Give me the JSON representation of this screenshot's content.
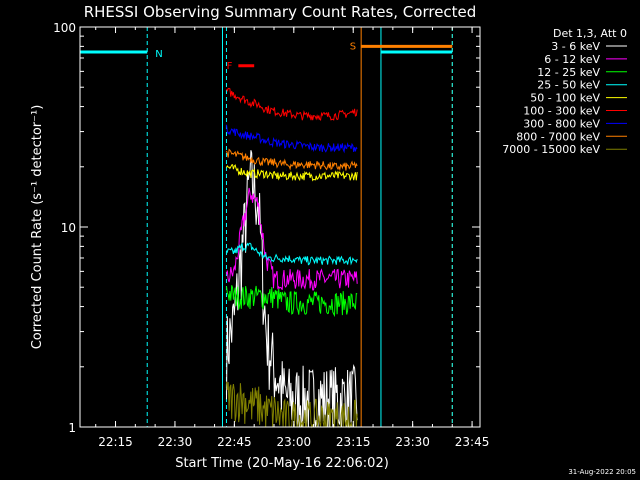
{
  "chart_data": {
    "type": "line",
    "title": "RHESSI Observing Summary Count Rates, Corrected",
    "xlabel": "Start Time (20-May-16 22:06:02)",
    "ylabel": "Corrected Count Rate (s⁻¹ detector⁻¹)",
    "x_ticks": [
      "22:15",
      "22:30",
      "22:45",
      "23:00",
      "23:15",
      "23:30",
      "23:45"
    ],
    "y_ticks": [
      "1",
      "10",
      "100"
    ],
    "y_scale": "log",
    "ylim": [
      1,
      100
    ],
    "xlim": [
      "22:06:02",
      "23:47:00"
    ],
    "legend_header": "Det 1,3, Att 0",
    "legend_placement": "right",
    "timestamp": "31-Aug-2022 20:05",
    "flags": [
      {
        "label": "N",
        "color": "#00ffff",
        "start": "22:06:02",
        "end": "22:23:00",
        "value": 75
      },
      {
        "label": "F",
        "color": "#ff0000",
        "start": "22:46:00",
        "end": "22:50:00",
        "value": 64
      },
      {
        "label": "S",
        "color": "#ff8000",
        "start": "23:17:00",
        "end": "23:40:00",
        "value": 80
      },
      {
        "label": "",
        "color": "#00ffff",
        "start": "23:22:00",
        "end": "23:40:00",
        "value": 75
      }
    ],
    "vertical_lines": [
      {
        "time": "22:06:02",
        "color": "#00ffff",
        "style": "solid"
      },
      {
        "time": "22:23:00",
        "color": "#00ffff",
        "style": "dashed"
      },
      {
        "time": "22:42:00",
        "color": "#00ffff",
        "style": "solid"
      },
      {
        "time": "22:43:00",
        "color": "#00ffff",
        "style": "dashed"
      },
      {
        "time": "23:17:00",
        "color": "#ff8000",
        "style": "solid"
      },
      {
        "time": "23:22:00",
        "color": "#00ffff",
        "style": "solid"
      },
      {
        "time": "23:40:00",
        "color": "#ff8000",
        "style": "dashed"
      },
      {
        "time": "23:40:00",
        "color": "#00ffff",
        "style": "dashed"
      }
    ],
    "series": [
      {
        "name": "3 - 6 keV",
        "color": "#ffffff",
        "x": [
          "22:43",
          "22:45",
          "22:47",
          "22:49",
          "22:51",
          "22:53",
          "22:55",
          "22:58",
          "23:02",
          "23:06",
          "23:10",
          "23:14",
          "23:16"
        ],
        "values": [
          2.5,
          3.5,
          8,
          18,
          14,
          3,
          2,
          1.4,
          1.4,
          1.4,
          1.4,
          1.4,
          1.4
        ]
      },
      {
        "name": "6 - 12 keV",
        "color": "#ff00ff",
        "x": [
          "22:43",
          "22:45",
          "22:47",
          "22:49",
          "22:51",
          "22:53",
          "22:55",
          "22:58",
          "23:02",
          "23:06",
          "23:10",
          "23:14",
          "23:16"
        ],
        "values": [
          5.5,
          6,
          10,
          15,
          13,
          7,
          5.5,
          5.5,
          5.5,
          5.5,
          5.5,
          5.5,
          5.5
        ]
      },
      {
        "name": "12 - 25 keV",
        "color": "#00ff00",
        "x": [
          "22:43",
          "22:45",
          "22:47",
          "22:49",
          "22:51",
          "22:53",
          "22:55",
          "22:58",
          "23:02",
          "23:06",
          "23:10",
          "23:14",
          "23:16"
        ],
        "values": [
          4.8,
          4.5,
          4.5,
          4.5,
          4.5,
          4.5,
          4.5,
          4.2,
          4.2,
          4.2,
          4.2,
          4.2,
          4.2
        ]
      },
      {
        "name": "25 - 50 keV",
        "color": "#00ffff",
        "x": [
          "22:43",
          "22:45",
          "22:47",
          "22:49",
          "22:51",
          "22:53",
          "22:55",
          "22:58",
          "23:02",
          "23:06",
          "23:10",
          "23:14",
          "23:16"
        ],
        "values": [
          7.5,
          7.5,
          8,
          8,
          7.5,
          7,
          7,
          7,
          6.8,
          6.8,
          6.8,
          6.8,
          7
        ]
      },
      {
        "name": "50 - 100 keV",
        "color": "#ffff00",
        "x": [
          "22:43",
          "22:45",
          "22:47",
          "22:49",
          "22:51",
          "22:53",
          "22:55",
          "22:58",
          "23:02",
          "23:06",
          "23:10",
          "23:14",
          "23:16"
        ],
        "values": [
          20,
          19.5,
          19,
          18.5,
          18.5,
          18.5,
          18,
          18,
          18,
          18,
          18,
          18,
          18
        ]
      },
      {
        "name": "100 - 300 keV",
        "color": "#ff0000",
        "x": [
          "22:43",
          "22:45",
          "22:47",
          "22:49",
          "22:51",
          "22:53",
          "22:55",
          "22:58",
          "23:02",
          "23:06",
          "23:10",
          "23:14",
          "23:16"
        ],
        "values": [
          48,
          46,
          44,
          42,
          41,
          39,
          38,
          37,
          36,
          36,
          36,
          37,
          38
        ]
      },
      {
        "name": "300 - 800 keV",
        "color": "#0000ff",
        "x": [
          "22:43",
          "22:45",
          "22:47",
          "22:49",
          "22:51",
          "22:53",
          "22:55",
          "22:58",
          "23:02",
          "23:06",
          "23:10",
          "23:14",
          "23:16"
        ],
        "values": [
          31,
          30,
          29,
          28.5,
          28,
          27,
          26.5,
          26,
          25.5,
          25,
          25,
          25,
          25
        ]
      },
      {
        "name": "800 - 7000 keV",
        "color": "#ff8000",
        "x": [
          "22:43",
          "22:45",
          "22:47",
          "22:49",
          "22:51",
          "22:53",
          "22:55",
          "22:58",
          "23:02",
          "23:06",
          "23:10",
          "23:14",
          "23:16"
        ],
        "values": [
          23.5,
          23,
          22.5,
          22,
          21.5,
          21,
          21,
          20.5,
          20.5,
          20.5,
          20,
          20,
          20.5
        ]
      },
      {
        "name": "7000 - 15000 keV",
        "color": "#808000",
        "x": [
          "22:43",
          "22:45",
          "22:47",
          "22:49",
          "22:51",
          "22:53",
          "22:55",
          "22:58",
          "23:02",
          "23:06",
          "23:10",
          "23:14",
          "23:16"
        ],
        "values": [
          1.4,
          1.4,
          1.4,
          1.3,
          1.3,
          1.2,
          1.2,
          1.1,
          1.1,
          1.1,
          1.1,
          1.1,
          1.1
        ]
      }
    ]
  }
}
